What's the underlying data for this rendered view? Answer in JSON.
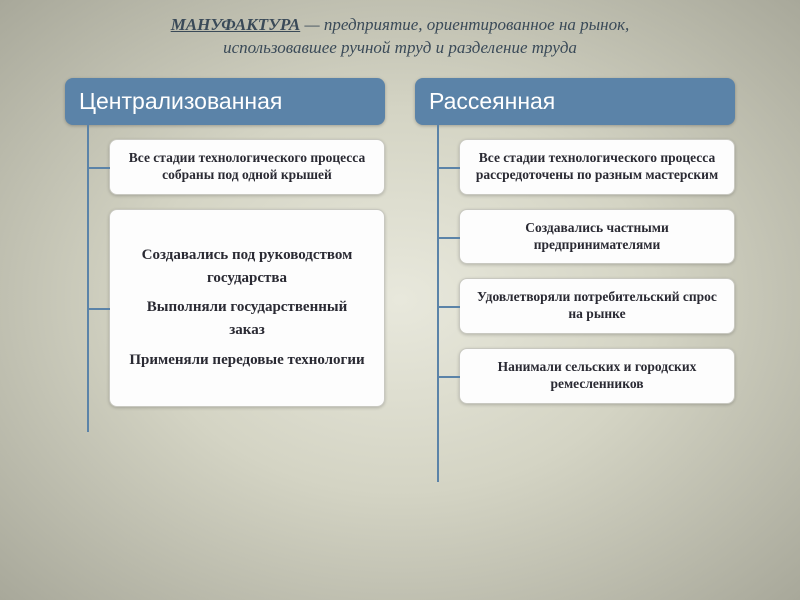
{
  "title": {
    "word": "МАНУФАКТУРА",
    "rest1": " — предприятие, ориентированное на рынок,",
    "line2": "использовавшее ручной труд и разделение труда",
    "color": "#3a4a58",
    "fontsize": 17
  },
  "diagram": {
    "type": "tree",
    "connector_color": "#5b83a8",
    "box_bg": "#fdfdfd",
    "box_border": "#c8c8c0",
    "head_bg": "#5b83a8",
    "head_text_color": "#ffffff",
    "columns": [
      {
        "id": "central",
        "head": "Централизованная",
        "head_fontsize": 23,
        "vline_height": 310,
        "items": [
          {
            "lines": [
              "Все стадии технологического процесса собраны под одной крышей"
            ],
            "size": "s"
          },
          {
            "lines": [
              "Создавались под руководством государства",
              "Выполняли государственный заказ",
              "Применяли передовые технологии"
            ],
            "size": "m"
          }
        ]
      },
      {
        "id": "scattered",
        "head": "Рассеянная",
        "head_fontsize": 23,
        "vline_height": 360,
        "items": [
          {
            "lines": [
              "Все стадии технологического процесса рассредоточены по разным мастерским"
            ],
            "size": "s"
          },
          {
            "lines": [
              "Создавались частными предпринимателями"
            ],
            "size": "s"
          },
          {
            "lines": [
              "Удовлетворяли потребительский спрос на рынке"
            ],
            "size": "s"
          },
          {
            "lines": [
              "Нанимали сельских и городских ремесленников"
            ],
            "size": "s"
          }
        ]
      }
    ]
  }
}
